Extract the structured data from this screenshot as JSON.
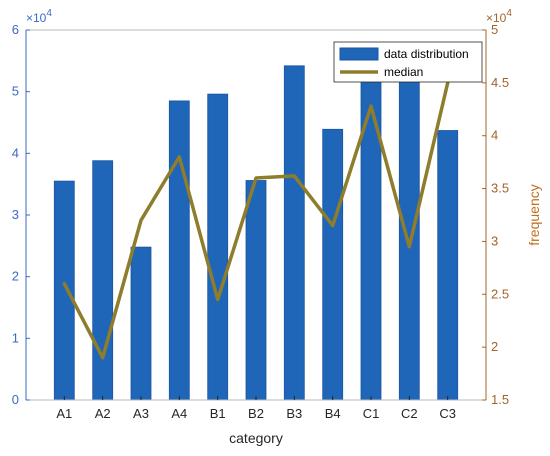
{
  "chart_data": {
    "type": "bar",
    "categories": [
      "A1",
      "A2",
      "A3",
      "A4",
      "B1",
      "B2",
      "B3",
      "B4",
      "C1",
      "C2",
      "C3"
    ],
    "series": [
      {
        "name": "data distribution",
        "type": "bar",
        "axis": "left",
        "values": [
          35500,
          38800,
          24800,
          48500,
          49600,
          35600,
          54200,
          43900,
          52500,
          52500,
          43700
        ]
      },
      {
        "name": "median",
        "type": "line",
        "axis": "right",
        "values": [
          26000,
          19000,
          32000,
          38000,
          24500,
          36000,
          36200,
          31500,
          42800,
          29500,
          45000
        ]
      }
    ],
    "xlabel": "category",
    "ylabel": "",
    "y2label": "frequency",
    "ylim": [
      0,
      60000
    ],
    "y2lim": [
      15000,
      50000
    ],
    "yticks": [
      "0",
      "1",
      "2",
      "3",
      "4",
      "5",
      "6"
    ],
    "y2ticks": [
      "1.5",
      "2",
      "2.5",
      "3",
      "3.5",
      "4",
      "4.5",
      "5"
    ],
    "yexponent_base": "×10",
    "yexponent_power": "4",
    "y2exponent_base": "×10",
    "y2exponent_power": "4",
    "legend_position": "top-right",
    "grid": false,
    "colors": {
      "bar": "#1f65b8",
      "bar_edge": "#1a56a0",
      "line": "#8e7d2c",
      "left_axis": "#3a6ac4",
      "right_axis": "#a0652a",
      "y2label": "#c07020"
    }
  }
}
